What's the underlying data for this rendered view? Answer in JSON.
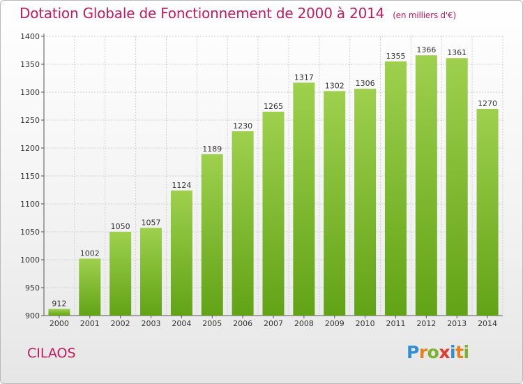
{
  "header": {
    "title": "Dotation Globale de Fonctionnement de 2000 à 2014",
    "subtitle": "(en milliers d'€)"
  },
  "footer": {
    "city": "CILAOS",
    "logo_letters": [
      {
        "char": "P",
        "color": "#2f8fd0"
      },
      {
        "char": "r",
        "color": "#e8801a"
      },
      {
        "char": "o",
        "color": "#7ab32e"
      },
      {
        "char": "x",
        "color": "#e23a2e"
      },
      {
        "char": "i",
        "color": "#2f8fd0"
      },
      {
        "char": "t",
        "color": "#e8801a"
      },
      {
        "char": "i",
        "color": "#7ab32e"
      }
    ]
  },
  "colors": {
    "title": "#c3185f",
    "bar_light": "#9ed04e",
    "bar_dark": "#62a316",
    "grid": "#cfcfcf"
  },
  "chart_data": {
    "type": "bar",
    "title": "Dotation Globale de Fonctionnement de 2000 à 2014",
    "subtitle": "(en milliers d'€)",
    "xlabel": "",
    "ylabel": "",
    "ylim": [
      900,
      1400
    ],
    "yticks": [
      900,
      950,
      1000,
      1050,
      1100,
      1150,
      1200,
      1250,
      1300,
      1350,
      1400
    ],
    "grid": true,
    "categories": [
      "2000",
      "2001",
      "2002",
      "2003",
      "2004",
      "2005",
      "2006",
      "2007",
      "2008",
      "2009",
      "2010",
      "2011",
      "2012",
      "2013",
      "2014"
    ],
    "values": [
      912,
      1002,
      1050,
      1057,
      1124,
      1189,
      1230,
      1265,
      1317,
      1302,
      1306,
      1355,
      1366,
      1361,
      1270
    ]
  }
}
